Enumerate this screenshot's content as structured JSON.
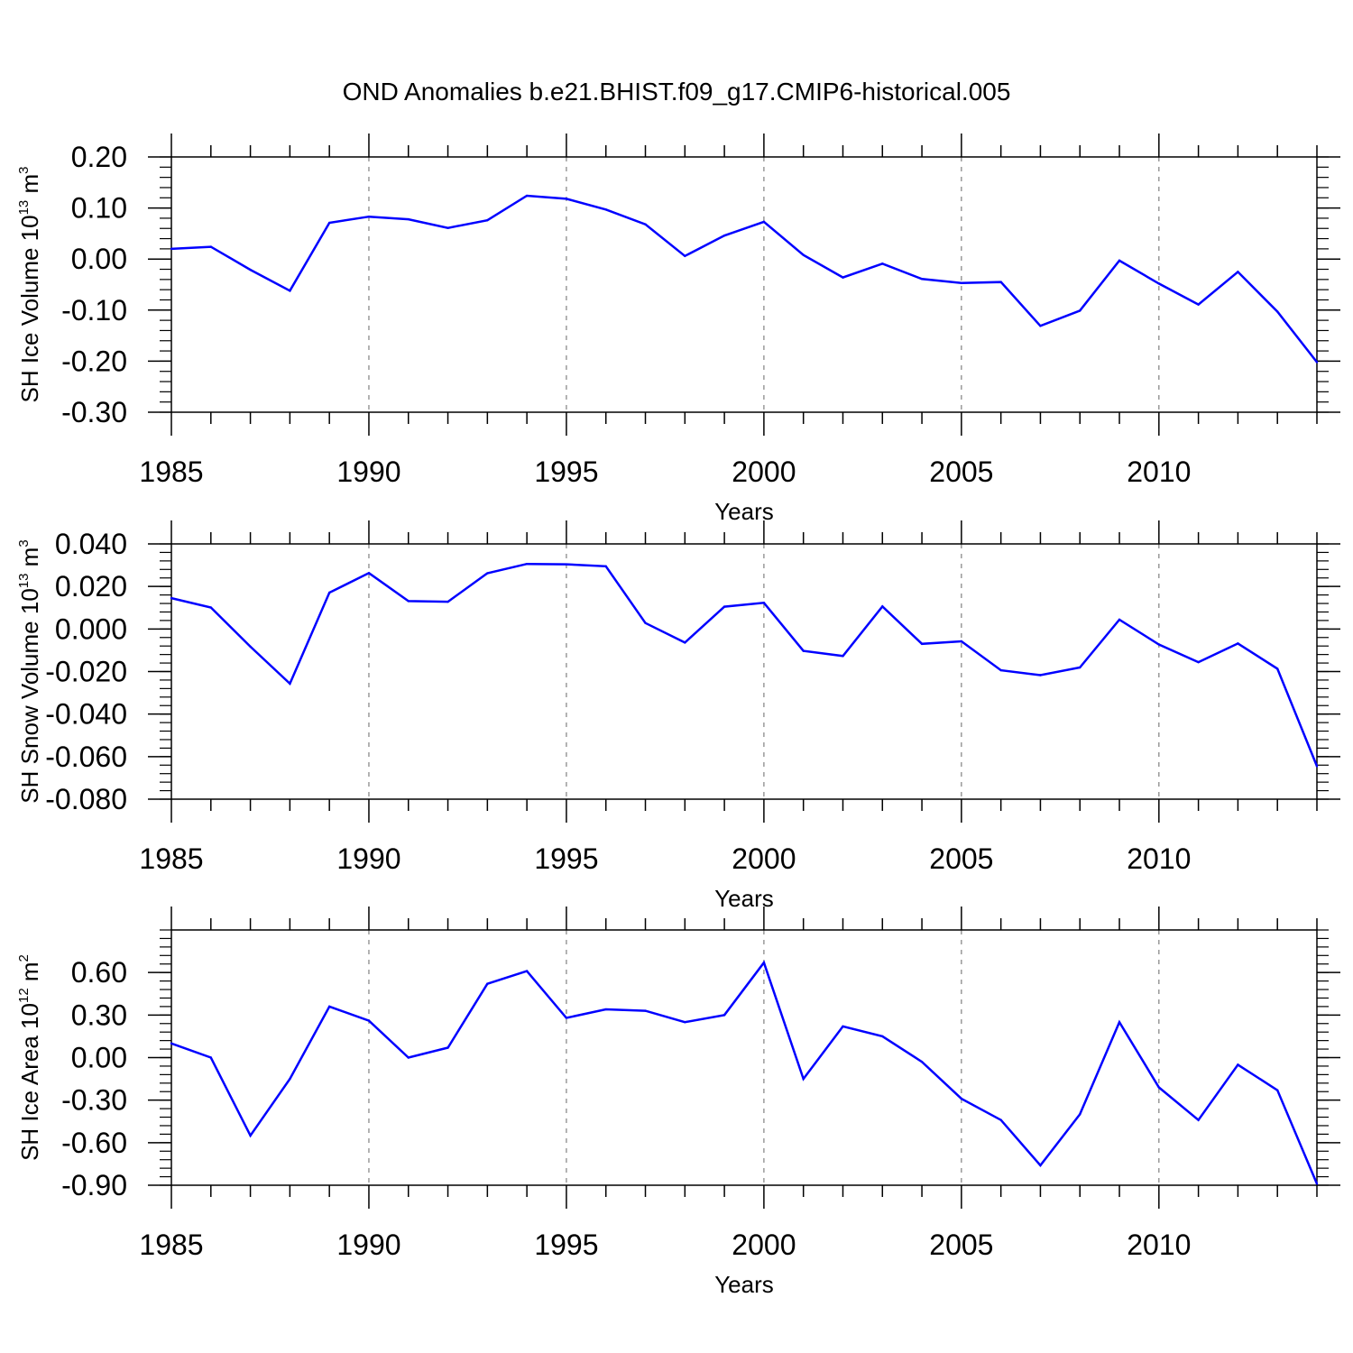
{
  "figure_title": "OND Anomalies b.e21.BHIST.f09_g17.CMIP6-historical.005",
  "colors": {
    "series": "#0000ff",
    "frame": "#000000",
    "grid": "#808080"
  },
  "chart_data": [
    {
      "type": "line",
      "title": "OND Anomalies b.e21.BHIST.f09_g17.CMIP6-historical.005",
      "xlabel": "Years",
      "ylabel_main": "SH Ice Volume 10",
      "ylabel_exp": "13",
      "ylabel_unit": " m",
      "ylabel_unit_exp": "3",
      "xlim": [
        1985,
        2014
      ],
      "ylim": [
        -0.3,
        0.2
      ],
      "x_tick_values": [
        1985,
        1990,
        1995,
        2000,
        2005,
        2010
      ],
      "x_tick_labels": [
        "1985",
        "1990",
        "1995",
        "2000",
        "2005",
        "2010"
      ],
      "y_tick_values": [
        0.2,
        0.1,
        0.0,
        -0.1,
        -0.2,
        -0.3
      ],
      "y_tick_labels": [
        "0.20",
        "0.10",
        "0.00",
        "-0.10",
        "-0.20",
        "-0.30"
      ],
      "grid": "vertical dashed at major x ticks",
      "series": [
        {
          "name": "SH Ice Volume",
          "x": [
            1985,
            1986,
            1987,
            1988,
            1989,
            1990,
            1991,
            1992,
            1993,
            1994,
            1995,
            1996,
            1997,
            1998,
            1999,
            2000,
            2001,
            2002,
            2003,
            2004,
            2005,
            2006,
            2007,
            2008,
            2009,
            2010,
            2011,
            2012,
            2013,
            2014
          ],
          "values": [
            0.02,
            0.024,
            -0.021,
            -0.062,
            0.071,
            0.083,
            0.078,
            0.061,
            0.076,
            0.124,
            0.118,
            0.097,
            0.068,
            0.006,
            0.046,
            0.073,
            0.008,
            -0.036,
            -0.009,
            -0.039,
            -0.047,
            -0.045,
            -0.131,
            -0.101,
            -0.003,
            -0.048,
            -0.089,
            -0.025,
            -0.103,
            -0.202
          ]
        }
      ]
    },
    {
      "type": "line",
      "xlabel": "Years",
      "ylabel_main": "SH Snow Volume 10",
      "ylabel_exp": "13",
      "ylabel_unit": " m",
      "ylabel_unit_exp": "3",
      "xlim": [
        1985,
        2014
      ],
      "ylim": [
        -0.08,
        0.04
      ],
      "x_tick_values": [
        1985,
        1990,
        1995,
        2000,
        2005,
        2010
      ],
      "x_tick_labels": [
        "1985",
        "1990",
        "1995",
        "2000",
        "2005",
        "2010"
      ],
      "y_tick_values": [
        0.04,
        0.02,
        0.0,
        -0.02,
        -0.04,
        -0.06,
        -0.08
      ],
      "y_tick_labels": [
        "0.040",
        "0.020",
        "0.000",
        "-0.020",
        "-0.040",
        "-0.060",
        "-0.080"
      ],
      "grid": "vertical dashed at major x ticks",
      "series": [
        {
          "name": "SH Snow Volume",
          "x": [
            1985,
            1986,
            1987,
            1988,
            1989,
            1990,
            1991,
            1992,
            1993,
            1994,
            1995,
            1996,
            1997,
            1998,
            1999,
            2000,
            2001,
            2002,
            2003,
            2004,
            2005,
            2006,
            2007,
            2008,
            2009,
            2010,
            2011,
            2012,
            2013,
            2014
          ],
          "values": [
            0.0145,
            0.0101,
            -0.0083,
            -0.0257,
            0.0171,
            0.0263,
            0.0131,
            0.0128,
            0.0262,
            0.0306,
            0.0304,
            0.0295,
            0.0028,
            -0.0064,
            0.0105,
            0.0123,
            -0.0103,
            -0.0127,
            0.0106,
            -0.007,
            -0.0058,
            -0.0194,
            -0.0217,
            -0.0181,
            0.0044,
            -0.0073,
            -0.0156,
            -0.0068,
            -0.0187,
            -0.0645
          ]
        }
      ]
    },
    {
      "type": "line",
      "xlabel": "Years",
      "ylabel_main": "SH Ice Area 10",
      "ylabel_exp": "12",
      "ylabel_unit": " m",
      "ylabel_unit_exp": "2",
      "xlim": [
        1985,
        2014
      ],
      "ylim": [
        -0.9,
        0.9
      ],
      "x_tick_values": [
        1985,
        1990,
        1995,
        2000,
        2005,
        2010
      ],
      "x_tick_labels": [
        "1985",
        "1990",
        "1995",
        "2000",
        "2005",
        "2010"
      ],
      "y_tick_values": [
        0.6,
        0.3,
        0.0,
        -0.3,
        -0.6,
        -0.9
      ],
      "y_tick_labels": [
        "0.60",
        "0.30",
        "0.00",
        "-0.30",
        "-0.60",
        "-0.90"
      ],
      "grid": "vertical dashed at major x ticks",
      "series": [
        {
          "name": "SH Ice Area",
          "x": [
            1985,
            1986,
            1987,
            1988,
            1989,
            1990,
            1991,
            1992,
            1993,
            1994,
            1995,
            1996,
            1997,
            1998,
            1999,
            2000,
            2001,
            2002,
            2003,
            2004,
            2005,
            2006,
            2007,
            2008,
            2009,
            2010,
            2011,
            2012,
            2013,
            2014
          ],
          "values": [
            0.1,
            0.0,
            -0.55,
            -0.15,
            0.36,
            0.26,
            0.0,
            0.07,
            0.52,
            0.61,
            0.28,
            0.34,
            0.33,
            0.25,
            0.3,
            0.67,
            -0.15,
            0.22,
            0.15,
            -0.03,
            -0.29,
            -0.44,
            -0.76,
            -0.4,
            0.25,
            -0.21,
            -0.44,
            -0.05,
            -0.23,
            -0.89
          ]
        }
      ]
    }
  ]
}
